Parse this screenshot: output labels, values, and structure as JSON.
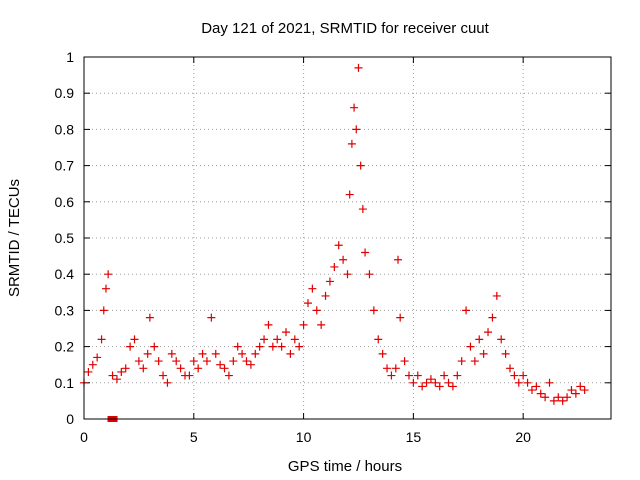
{
  "chart_data": {
    "type": "scatter",
    "title": "Day 121 of 2021, SRMTID for receiver cuut",
    "xlabel": "GPS time / hours",
    "ylabel": "SRMTID / TECUs",
    "xlim": [
      0,
      24
    ],
    "ylim": [
      0,
      1
    ],
    "xticks": [
      0,
      5,
      10,
      15,
      20
    ],
    "xtick_labels": [
      "0",
      "5",
      "10",
      "15",
      "20"
    ],
    "yticks": [
      0,
      0.1,
      0.2,
      0.3,
      0.4,
      0.5,
      0.6,
      0.7,
      0.8,
      0.9,
      1
    ],
    "ytick_labels": [
      "0",
      "0.1",
      "0.2",
      "0.3",
      "0.4",
      "0.5",
      "0.6",
      "0.7",
      "0.8",
      "0.9",
      "1"
    ],
    "grid": true,
    "marker": "+",
    "color": "#e00000",
    "series": [
      {
        "name": "SRMTID",
        "x": [
          0.0,
          0.2,
          0.4,
          0.6,
          0.8,
          0.9,
          1.0,
          1.1,
          1.3,
          1.5,
          1.7,
          1.9,
          2.1,
          2.3,
          2.5,
          2.7,
          2.9,
          3.0,
          3.2,
          3.4,
          3.6,
          3.8,
          4.0,
          4.2,
          4.4,
          4.6,
          4.8,
          5.0,
          5.2,
          5.4,
          5.6,
          5.8,
          6.0,
          6.2,
          6.4,
          6.6,
          6.8,
          7.0,
          7.2,
          7.4,
          7.6,
          7.8,
          8.0,
          8.2,
          8.4,
          8.6,
          8.8,
          9.0,
          9.2,
          9.4,
          9.6,
          9.8,
          10.0,
          10.2,
          10.4,
          10.6,
          10.8,
          11.0,
          11.2,
          11.4,
          11.6,
          11.8,
          12.0,
          12.1,
          12.2,
          12.3,
          12.4,
          12.5,
          12.6,
          12.7,
          12.8,
          13.0,
          13.2,
          13.4,
          13.6,
          13.8,
          14.0,
          14.2,
          14.3,
          14.4,
          14.6,
          14.8,
          15.0,
          15.2,
          15.4,
          15.6,
          15.8,
          16.0,
          16.2,
          16.4,
          16.6,
          16.8,
          17.0,
          17.2,
          17.4,
          17.6,
          17.8,
          18.0,
          18.2,
          18.4,
          18.6,
          18.8,
          19.0,
          19.2,
          19.4,
          19.6,
          19.8,
          20.0,
          20.2,
          20.4,
          20.6,
          20.8,
          21.0,
          21.2,
          21.4,
          21.6,
          21.8,
          22.0,
          22.2,
          22.4,
          22.6,
          22.8
        ],
        "y": [
          0.1,
          0.13,
          0.15,
          0.17,
          0.22,
          0.3,
          0.36,
          0.4,
          0.12,
          0.11,
          0.13,
          0.14,
          0.2,
          0.22,
          0.16,
          0.14,
          0.18,
          0.28,
          0.2,
          0.16,
          0.12,
          0.1,
          0.18,
          0.16,
          0.14,
          0.12,
          0.12,
          0.16,
          0.14,
          0.18,
          0.16,
          0.28,
          0.18,
          0.15,
          0.14,
          0.12,
          0.16,
          0.2,
          0.18,
          0.16,
          0.15,
          0.18,
          0.2,
          0.22,
          0.26,
          0.2,
          0.22,
          0.2,
          0.24,
          0.18,
          0.22,
          0.2,
          0.26,
          0.32,
          0.36,
          0.3,
          0.26,
          0.34,
          0.38,
          0.42,
          0.48,
          0.44,
          0.4,
          0.62,
          0.76,
          0.86,
          0.8,
          0.97,
          0.7,
          0.58,
          0.46,
          0.4,
          0.3,
          0.22,
          0.18,
          0.14,
          0.12,
          0.14,
          0.44,
          0.28,
          0.16,
          0.12,
          0.1,
          0.12,
          0.09,
          0.1,
          0.11,
          0.1,
          0.09,
          0.12,
          0.1,
          0.09,
          0.12,
          0.16,
          0.3,
          0.2,
          0.16,
          0.22,
          0.18,
          0.24,
          0.28,
          0.34,
          0.22,
          0.18,
          0.14,
          0.12,
          0.1,
          0.12,
          0.1,
          0.08,
          0.09,
          0.07,
          0.06,
          0.1,
          0.05,
          0.06,
          0.05,
          0.06,
          0.08,
          0.07,
          0.09,
          0.08
        ]
      }
    ],
    "annotations": [
      {
        "type": "marker",
        "shape": "square",
        "x": 1.3,
        "y": 0.0,
        "color": "#e00000"
      }
    ]
  }
}
